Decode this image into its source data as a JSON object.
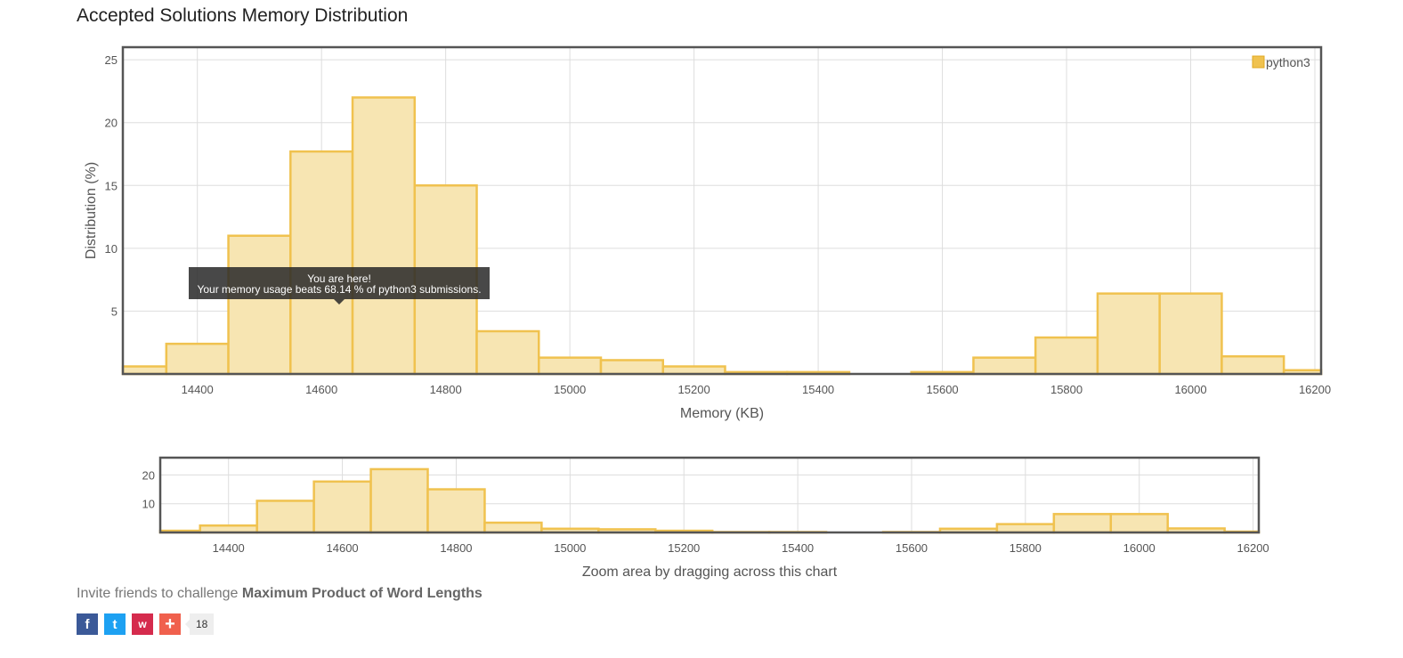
{
  "title": "Accepted Solutions Memory Distribution",
  "chart_data": [
    {
      "type": "bar",
      "title": "Accepted Solutions Memory Distribution",
      "xlabel": "Memory (KB)",
      "ylabel": "Distribution (%)",
      "xlim": [
        14280,
        16210
      ],
      "ylim": [
        0,
        26
      ],
      "xticks": [
        14400,
        14600,
        14800,
        15000,
        15200,
        15400,
        15600,
        15800,
        16000,
        16200
      ],
      "yticks": [
        5,
        10,
        15,
        20,
        25
      ],
      "grid": true,
      "legend": "top-right",
      "series": [
        {
          "name": "python3",
          "color": "#f0c24f",
          "bins": [
            {
              "x": 14300,
              "value": 0.6
            },
            {
              "x": 14400,
              "value": 2.4
            },
            {
              "x": 14500,
              "value": 11.0
            },
            {
              "x": 14600,
              "value": 17.7
            },
            {
              "x": 14700,
              "value": 22.0
            },
            {
              "x": 14800,
              "value": 15.0
            },
            {
              "x": 14900,
              "value": 3.4
            },
            {
              "x": 15000,
              "value": 1.3
            },
            {
              "x": 15100,
              "value": 1.1
            },
            {
              "x": 15200,
              "value": 0.6
            },
            {
              "x": 15300,
              "value": 0.15
            },
            {
              "x": 15400,
              "value": 0.15
            },
            {
              "x": 15500,
              "value": 0
            },
            {
              "x": 15600,
              "value": 0.15
            },
            {
              "x": 15700,
              "value": 1.3
            },
            {
              "x": 15800,
              "value": 2.9
            },
            {
              "x": 15900,
              "value": 6.4
            },
            {
              "x": 16000,
              "value": 6.4
            },
            {
              "x": 16100,
              "value": 1.4
            },
            {
              "x": 16200,
              "value": 0.3
            }
          ]
        }
      ],
      "annotation": {
        "title": "You are here!",
        "text": "Your memory usage beats 68.14 % of python3 submissions.",
        "x": 14650
      }
    },
    {
      "type": "bar",
      "xlabel": "Zoom area by dragging across this chart",
      "xlim": [
        14280,
        16210
      ],
      "ylim": [
        0,
        26
      ],
      "xticks": [
        14400,
        14600,
        14800,
        15000,
        15200,
        15400,
        15600,
        15800,
        16000,
        16200
      ],
      "yticks": [
        10,
        20
      ],
      "grid": true
    }
  ],
  "invite": {
    "prefix": "Invite friends to challenge ",
    "problem": "Maximum Product of Word Lengths"
  },
  "share": {
    "facebook": "f",
    "twitter": "t",
    "weibo": "w",
    "plus": "+",
    "count": "18"
  }
}
